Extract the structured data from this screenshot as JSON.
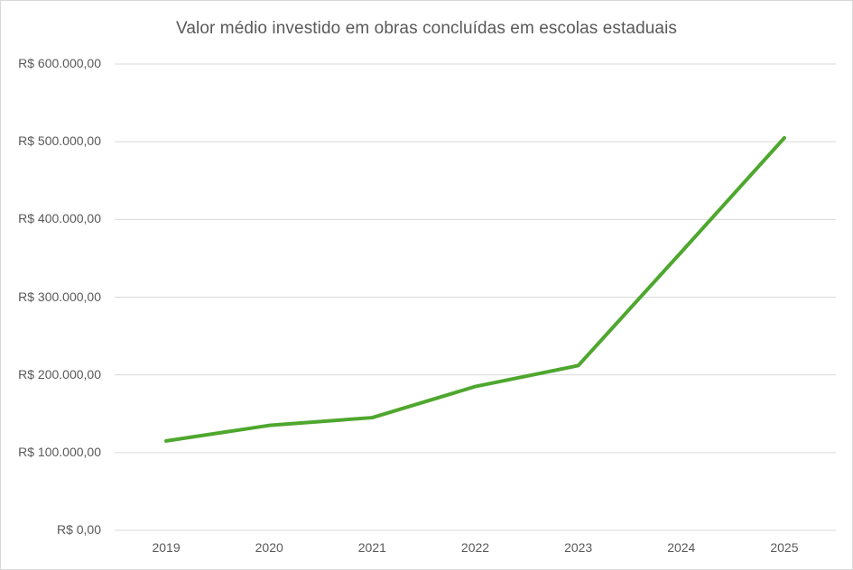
{
  "chart_data": {
    "type": "line",
    "title": "Valor médio investido em obras concluídas em escolas estaduais",
    "categories": [
      "2019",
      "2020",
      "2021",
      "2022",
      "2023",
      "2024",
      "2025"
    ],
    "values": [
      115000,
      135000,
      145000,
      185000,
      212000,
      358000,
      505000
    ],
    "y_tick_labels": [
      "R$ 0,00",
      "R$ 100.000,00",
      "R$ 200.000,00",
      "R$ 300.000,00",
      "R$ 400.000,00",
      "R$ 500.000,00",
      "R$ 600.000,00"
    ],
    "ylim": [
      0,
      600000
    ],
    "grid": true,
    "legend": "none",
    "colors": {
      "line": "#4EA72E",
      "grid": "#D9D9D9",
      "text": "#595959",
      "border": "#D9D9D9",
      "background": "#FFFFFF"
    }
  }
}
